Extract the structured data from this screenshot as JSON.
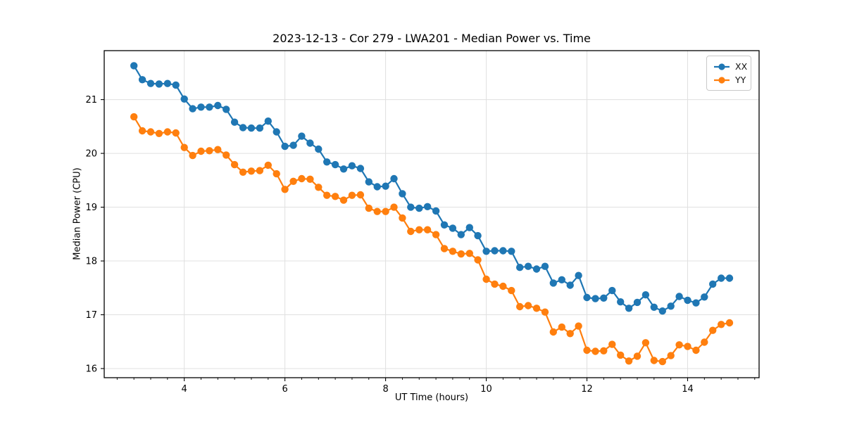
{
  "chart_data": {
    "type": "line",
    "title": "2023-12-13 - Cor 279 - LWA201 - Median Power vs. Time",
    "xlabel": "UT Time (hours)",
    "ylabel": "Median Power (CPU)",
    "xlim": [
      2.41,
      15.42
    ],
    "ylim": [
      15.83,
      21.91
    ],
    "x_major_ticks": [
      4,
      6,
      8,
      10,
      12,
      14
    ],
    "x_minor_tick_step": 0.3333,
    "y_major_ticks": [
      16,
      17,
      18,
      19,
      20,
      21
    ],
    "grid": true,
    "marker": "circle",
    "legend_position": "upper right",
    "x": [
      3.0,
      3.167,
      3.333,
      3.5,
      3.667,
      3.833,
      4.0,
      4.167,
      4.333,
      4.5,
      4.667,
      4.833,
      5.0,
      5.167,
      5.333,
      5.5,
      5.667,
      5.833,
      6.0,
      6.167,
      6.333,
      6.5,
      6.667,
      6.833,
      7.0,
      7.167,
      7.333,
      7.5,
      7.667,
      7.833,
      8.0,
      8.167,
      8.333,
      8.5,
      8.667,
      8.833,
      9.0,
      9.167,
      9.333,
      9.5,
      9.667,
      9.833,
      10.0,
      10.167,
      10.333,
      10.5,
      10.667,
      10.833,
      11.0,
      11.167,
      11.333,
      11.5,
      11.667,
      11.833,
      12.0,
      12.167,
      12.333,
      12.5,
      12.667,
      12.833,
      13.0,
      13.167,
      13.333,
      13.5,
      13.667,
      13.833,
      14.0,
      14.167,
      14.333,
      14.5,
      14.667,
      14.833
    ],
    "series": [
      {
        "name": "XX",
        "color": "#1f77b4",
        "values": [
          21.63,
          21.37,
          21.3,
          21.29,
          21.3,
          21.27,
          21.01,
          20.83,
          20.86,
          20.86,
          20.89,
          20.82,
          20.58,
          20.48,
          20.47,
          20.47,
          20.6,
          20.4,
          20.13,
          20.15,
          20.32,
          20.19,
          20.08,
          19.84,
          19.79,
          19.71,
          19.77,
          19.72,
          19.47,
          19.38,
          19.39,
          19.53,
          19.25,
          19.0,
          18.98,
          19.01,
          18.93,
          18.67,
          18.61,
          18.49,
          18.62,
          18.47,
          18.18,
          18.19,
          18.19,
          18.18,
          17.88,
          17.9,
          17.85,
          17.9,
          17.59,
          17.65,
          17.55,
          17.73,
          17.32,
          17.3,
          17.31,
          17.45,
          17.24,
          17.12,
          17.23,
          17.37,
          17.14,
          17.07,
          17.16,
          17.34,
          17.27,
          17.22,
          17.33,
          17.57,
          17.68,
          17.68
        ]
      },
      {
        "name": "YY",
        "color": "#ff7f0e",
        "values": [
          20.68,
          20.42,
          20.4,
          20.37,
          20.4,
          20.38,
          20.11,
          19.96,
          20.04,
          20.05,
          20.07,
          19.97,
          19.79,
          19.65,
          19.67,
          19.68,
          19.78,
          19.62,
          19.33,
          19.48,
          19.53,
          19.52,
          19.37,
          19.22,
          19.2,
          19.13,
          19.22,
          19.23,
          18.98,
          18.92,
          18.92,
          19.0,
          18.8,
          18.55,
          18.58,
          18.58,
          18.49,
          18.23,
          18.18,
          18.13,
          18.14,
          18.02,
          17.66,
          17.57,
          17.53,
          17.45,
          17.15,
          17.17,
          17.12,
          17.05,
          16.68,
          16.77,
          16.65,
          16.79,
          16.34,
          16.32,
          16.33,
          16.45,
          16.25,
          16.14,
          16.23,
          16.48,
          16.15,
          16.13,
          16.24,
          16.44,
          16.41,
          16.34,
          16.49,
          16.71,
          16.82,
          16.85
        ]
      }
    ]
  }
}
